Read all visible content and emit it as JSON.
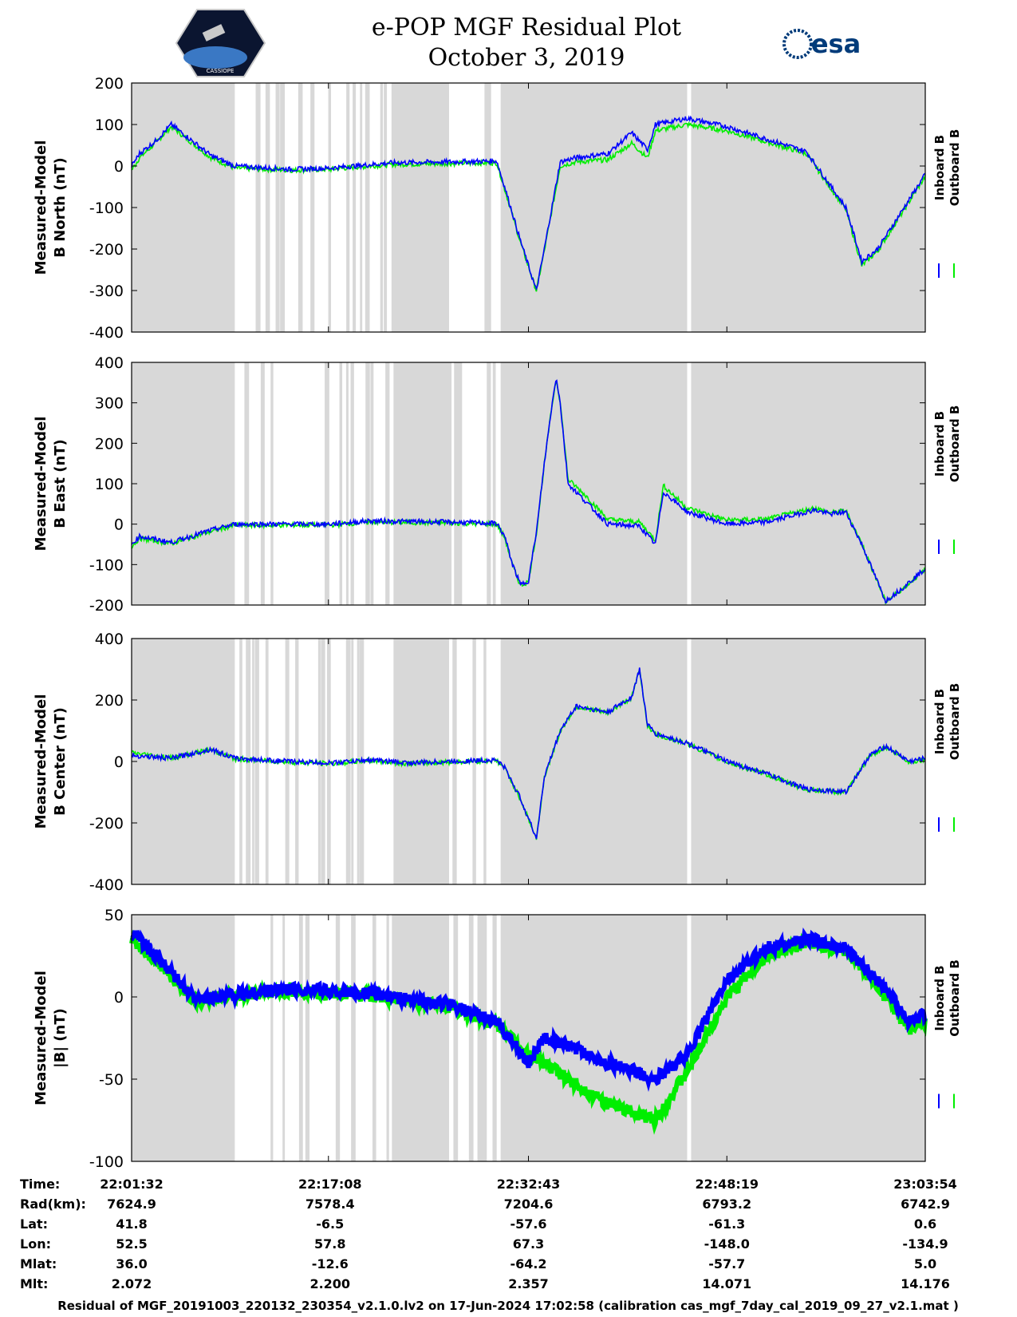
{
  "chart_data": {
    "type": "line",
    "title": [
      "e-POP MGF Residual Plot",
      "October 3, 2019"
    ],
    "legend": [
      "Inboard B",
      "Outboard B"
    ],
    "colors": {
      "inboard": "#0000ff",
      "outboard": "#00ee00",
      "gap": "#d8d8d8"
    },
    "gaps_fraction": [
      [
        0.0,
        0.13
      ],
      [
        0.33,
        0.4
      ],
      [
        0.465,
        0.7
      ],
      [
        0.705,
        1.0
      ]
    ],
    "x": {
      "labels": [
        "22:01:32",
        "22:17:08",
        "22:32:43",
        "22:48:19",
        "23:03:54"
      ],
      "rows": [
        {
          "label": "Time:",
          "values": [
            "22:01:32",
            "22:17:08",
            "22:32:43",
            "22:48:19",
            "23:03:54"
          ]
        },
        {
          "label": "Rad(km):",
          "values": [
            "7624.9",
            "7578.4",
            "7204.6",
            "6793.2",
            "6742.9"
          ]
        },
        {
          "label": "Lat:",
          "values": [
            "41.8",
            "-6.5",
            "-57.6",
            "-61.3",
            "0.6"
          ]
        },
        {
          "label": "Lon:",
          "values": [
            "52.5",
            "57.8",
            "67.3",
            "-148.0",
            "-134.9"
          ]
        },
        {
          "label": "Mlat:",
          "values": [
            "36.0",
            "-12.6",
            "-64.2",
            "-57.7",
            "5.0"
          ]
        },
        {
          "label": "Mlt:",
          "values": [
            "2.072",
            "2.200",
            "2.357",
            "14.071",
            "14.176"
          ]
        }
      ]
    },
    "panels": [
      {
        "ylabel": [
          "Measured-Model",
          "B North (nT)"
        ],
        "ylim": [
          -400,
          200
        ],
        "yticks": [
          "200",
          "100",
          "0",
          "-100",
          "-200",
          "-300",
          "-400"
        ],
        "inboard": [
          [
            0,
            0
          ],
          [
            0.01,
            30
          ],
          [
            0.03,
            60
          ],
          [
            0.05,
            100
          ],
          [
            0.07,
            70
          ],
          [
            0.1,
            25
          ],
          [
            0.13,
            0
          ],
          [
            0.2,
            -8
          ],
          [
            0.25,
            -5
          ],
          [
            0.28,
            0
          ],
          [
            0.33,
            8
          ],
          [
            0.4,
            10
          ],
          [
            0.46,
            12
          ],
          [
            0.47,
            -50
          ],
          [
            0.49,
            -180
          ],
          [
            0.51,
            -300
          ],
          [
            0.52,
            -200
          ],
          [
            0.54,
            10
          ],
          [
            0.56,
            20
          ],
          [
            0.6,
            30
          ],
          [
            0.63,
            80
          ],
          [
            0.65,
            40
          ],
          [
            0.66,
            100
          ],
          [
            0.7,
            115
          ],
          [
            0.75,
            95
          ],
          [
            0.8,
            65
          ],
          [
            0.85,
            35
          ],
          [
            0.9,
            -100
          ],
          [
            0.92,
            -230
          ],
          [
            0.94,
            -200
          ],
          [
            1.0,
            -20
          ]
        ],
        "outboard": [
          [
            0,
            -10
          ],
          [
            0.01,
            20
          ],
          [
            0.03,
            55
          ],
          [
            0.05,
            95
          ],
          [
            0.07,
            65
          ],
          [
            0.1,
            20
          ],
          [
            0.13,
            -5
          ],
          [
            0.2,
            -10
          ],
          [
            0.25,
            -8
          ],
          [
            0.28,
            -3
          ],
          [
            0.33,
            4
          ],
          [
            0.4,
            6
          ],
          [
            0.46,
            8
          ],
          [
            0.47,
            -55
          ],
          [
            0.49,
            -185
          ],
          [
            0.51,
            -300
          ],
          [
            0.52,
            -205
          ],
          [
            0.54,
            0
          ],
          [
            0.56,
            10
          ],
          [
            0.6,
            15
          ],
          [
            0.63,
            55
          ],
          [
            0.65,
            20
          ],
          [
            0.66,
            85
          ],
          [
            0.7,
            100
          ],
          [
            0.75,
            85
          ],
          [
            0.8,
            58
          ],
          [
            0.85,
            30
          ],
          [
            0.9,
            -105
          ],
          [
            0.92,
            -240
          ],
          [
            0.94,
            -205
          ],
          [
            1.0,
            -25
          ]
        ]
      },
      {
        "ylabel": [
          "Measured-Model",
          "B East (nT)"
        ],
        "ylim": [
          -200,
          400
        ],
        "yticks": [
          "400",
          "300",
          "200",
          "100",
          "0",
          "-100",
          "-200"
        ],
        "inboard": [
          [
            0,
            -50
          ],
          [
            0.01,
            -30
          ],
          [
            0.05,
            -45
          ],
          [
            0.1,
            -15
          ],
          [
            0.13,
            0
          ],
          [
            0.25,
            0
          ],
          [
            0.3,
            8
          ],
          [
            0.4,
            5
          ],
          [
            0.46,
            2
          ],
          [
            0.47,
            -30
          ],
          [
            0.48,
            -100
          ],
          [
            0.49,
            -150
          ],
          [
            0.5,
            -140
          ],
          [
            0.51,
            -20
          ],
          [
            0.52,
            150
          ],
          [
            0.53,
            300
          ],
          [
            0.535,
            365
          ],
          [
            0.54,
            300
          ],
          [
            0.55,
            100
          ],
          [
            0.57,
            60
          ],
          [
            0.6,
            0
          ],
          [
            0.64,
            -5
          ],
          [
            0.66,
            -50
          ],
          [
            0.67,
            80
          ],
          [
            0.7,
            30
          ],
          [
            0.75,
            0
          ],
          [
            0.8,
            5
          ],
          [
            0.86,
            35
          ],
          [
            0.88,
            25
          ],
          [
            0.9,
            30
          ],
          [
            0.92,
            -50
          ],
          [
            0.95,
            -190
          ],
          [
            0.97,
            -160
          ],
          [
            1.0,
            -110
          ]
        ],
        "outboard": [
          [
            0,
            -55
          ],
          [
            0.01,
            -35
          ],
          [
            0.05,
            -48
          ],
          [
            0.1,
            -18
          ],
          [
            0.13,
            -3
          ],
          [
            0.25,
            -2
          ],
          [
            0.3,
            5
          ],
          [
            0.4,
            3
          ],
          [
            0.46,
            0
          ],
          [
            0.47,
            -33
          ],
          [
            0.48,
            -102
          ],
          [
            0.49,
            -152
          ],
          [
            0.5,
            -142
          ],
          [
            0.51,
            -22
          ],
          [
            0.52,
            148
          ],
          [
            0.53,
            298
          ],
          [
            0.535,
            360
          ],
          [
            0.54,
            302
          ],
          [
            0.55,
            110
          ],
          [
            0.57,
            75
          ],
          [
            0.6,
            12
          ],
          [
            0.64,
            5
          ],
          [
            0.66,
            -40
          ],
          [
            0.67,
            95
          ],
          [
            0.7,
            40
          ],
          [
            0.75,
            10
          ],
          [
            0.8,
            12
          ],
          [
            0.86,
            40
          ],
          [
            0.88,
            28
          ],
          [
            0.9,
            33
          ],
          [
            0.92,
            -48
          ],
          [
            0.95,
            -192
          ],
          [
            0.97,
            -162
          ],
          [
            1.0,
            -112
          ]
        ]
      },
      {
        "ylabel": [
          "Measured-Model",
          "B Center (nT)"
        ],
        "ylim": [
          -400,
          400
        ],
        "yticks": [
          "400",
          "200",
          "0",
          "-200",
          "-400"
        ],
        "inboard": [
          [
            0,
            20
          ],
          [
            0.05,
            10
          ],
          [
            0.1,
            40
          ],
          [
            0.13,
            10
          ],
          [
            0.2,
            0
          ],
          [
            0.25,
            -5
          ],
          [
            0.3,
            5
          ],
          [
            0.35,
            -5
          ],
          [
            0.4,
            0
          ],
          [
            0.46,
            5
          ],
          [
            0.47,
            -20
          ],
          [
            0.49,
            -120
          ],
          [
            0.51,
            -250
          ],
          [
            0.52,
            -50
          ],
          [
            0.54,
            100
          ],
          [
            0.56,
            180
          ],
          [
            0.6,
            160
          ],
          [
            0.63,
            210
          ],
          [
            0.64,
            300
          ],
          [
            0.65,
            120
          ],
          [
            0.66,
            90
          ],
          [
            0.7,
            60
          ],
          [
            0.75,
            0
          ],
          [
            0.8,
            -40
          ],
          [
            0.85,
            -90
          ],
          [
            0.88,
            -95
          ],
          [
            0.9,
            -100
          ],
          [
            0.93,
            20
          ],
          [
            0.95,
            50
          ],
          [
            0.98,
            0
          ],
          [
            1.0,
            10
          ]
        ],
        "outboard": [
          [
            0,
            28
          ],
          [
            0.05,
            12
          ],
          [
            0.1,
            38
          ],
          [
            0.13,
            8
          ],
          [
            0.2,
            -2
          ],
          [
            0.25,
            -7
          ],
          [
            0.3,
            3
          ],
          [
            0.35,
            -7
          ],
          [
            0.4,
            -2
          ],
          [
            0.46,
            3
          ],
          [
            0.47,
            -22
          ],
          [
            0.49,
            -122
          ],
          [
            0.51,
            -252
          ],
          [
            0.52,
            -52
          ],
          [
            0.54,
            98
          ],
          [
            0.56,
            178
          ],
          [
            0.6,
            158
          ],
          [
            0.63,
            208
          ],
          [
            0.64,
            298
          ],
          [
            0.65,
            118
          ],
          [
            0.66,
            88
          ],
          [
            0.7,
            58
          ],
          [
            0.75,
            -2
          ],
          [
            0.8,
            -42
          ],
          [
            0.85,
            -92
          ],
          [
            0.88,
            -97
          ],
          [
            0.9,
            -102
          ],
          [
            0.93,
            18
          ],
          [
            0.95,
            48
          ],
          [
            0.98,
            -2
          ],
          [
            1.0,
            8
          ]
        ]
      },
      {
        "ylabel": [
          "Measured-Model",
          "|B| (nT)"
        ],
        "ylim": [
          -100,
          50
        ],
        "yticks": [
          "50",
          "0",
          "-50",
          "-100"
        ],
        "inboard": [
          [
            0,
            40
          ],
          [
            0.04,
            20
          ],
          [
            0.08,
            -2
          ],
          [
            0.1,
            0
          ],
          [
            0.2,
            5
          ],
          [
            0.3,
            2
          ],
          [
            0.4,
            -5
          ],
          [
            0.46,
            -15
          ],
          [
            0.5,
            -40
          ],
          [
            0.52,
            -25
          ],
          [
            0.55,
            -30
          ],
          [
            0.6,
            -40
          ],
          [
            0.66,
            -50
          ],
          [
            0.7,
            -35
          ],
          [
            0.75,
            10
          ],
          [
            0.8,
            30
          ],
          [
            0.85,
            35
          ],
          [
            0.9,
            30
          ],
          [
            0.95,
            5
          ],
          [
            0.98,
            -15
          ],
          [
            1.0,
            -10
          ]
        ],
        "outboard": [
          [
            0,
            35
          ],
          [
            0.04,
            18
          ],
          [
            0.08,
            -3
          ],
          [
            0.1,
            -1
          ],
          [
            0.2,
            4
          ],
          [
            0.3,
            1
          ],
          [
            0.4,
            -6
          ],
          [
            0.46,
            -16
          ],
          [
            0.5,
            -35
          ],
          [
            0.52,
            -40
          ],
          [
            0.55,
            -50
          ],
          [
            0.6,
            -65
          ],
          [
            0.66,
            -75
          ],
          [
            0.7,
            -45
          ],
          [
            0.75,
            0
          ],
          [
            0.8,
            25
          ],
          [
            0.85,
            33
          ],
          [
            0.9,
            28
          ],
          [
            0.95,
            0
          ],
          [
            0.98,
            -20
          ],
          [
            1.0,
            -15
          ]
        ]
      }
    ]
  },
  "footer": "Residual of MGF_20191003_220132_230354_v2.1.0.lv2 on 17-Jun-2024 17:02:58 (calibration cas_mgf_7day_cal_2019_09_27_v2.1.mat )",
  "logos": {
    "left": "CASSIOPE",
    "right": "esa"
  }
}
